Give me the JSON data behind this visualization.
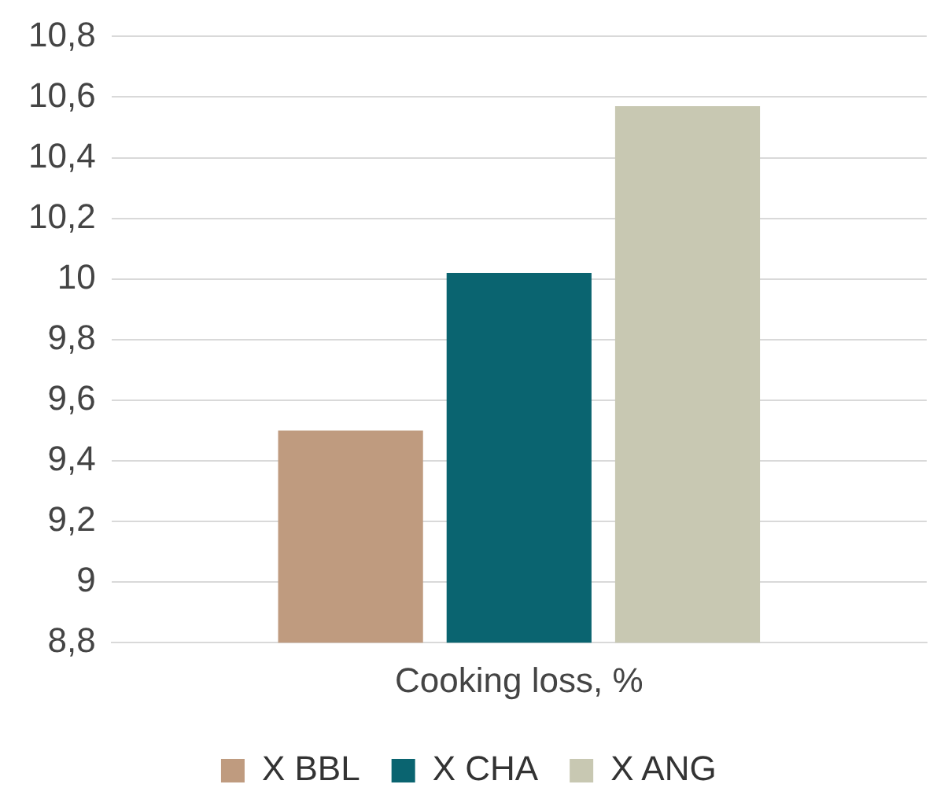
{
  "chart_data": {
    "type": "bar",
    "categories": [
      "Cooking loss, %"
    ],
    "series": [
      {
        "name": "X BBL",
        "color": "#bf9b7f",
        "values": [
          9.5
        ]
      },
      {
        "name": "X CHA",
        "color": "#0a6470",
        "values": [
          10.02
        ]
      },
      {
        "name": "X ANG",
        "color": "#c8c8b2",
        "values": [
          10.57
        ]
      }
    ],
    "ylim": [
      8.8,
      10.8
    ],
    "yticks": [
      {
        "value": 8.8,
        "label": "8,8"
      },
      {
        "value": 9,
        "label": "9"
      },
      {
        "value": 9.2,
        "label": "9,2"
      },
      {
        "value": 9.4,
        "label": "9,4"
      },
      {
        "value": 9.6,
        "label": "9,6"
      },
      {
        "value": 9.8,
        "label": "9,8"
      },
      {
        "value": 10,
        "label": "10"
      },
      {
        "value": 10.2,
        "label": "10,2"
      },
      {
        "value": 10.4,
        "label": "10,4"
      },
      {
        "value": 10.6,
        "label": "10,6"
      },
      {
        "value": 10.8,
        "label": "10,8"
      }
    ],
    "grid": "y",
    "legend": "bottom"
  }
}
